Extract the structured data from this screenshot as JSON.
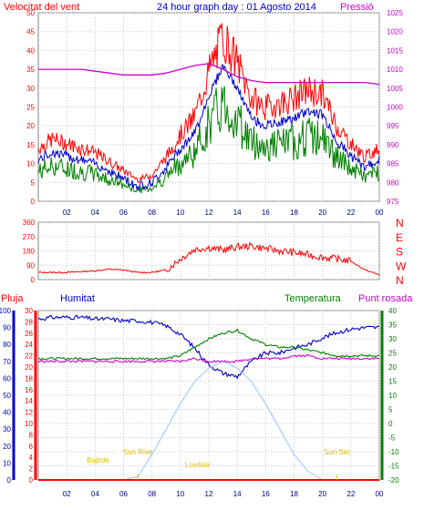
{
  "header": {
    "wind_label": "Velocitat del vent",
    "title": "24 hour graph day : 01 Agosto 2014",
    "pressure_label": "Pressió"
  },
  "colors": {
    "wind": "#ff0000",
    "wind_avg": "#0000cc",
    "wind_min": "#008000",
    "pressure": "#cc00cc",
    "humidity": "#0000cc",
    "temperature": "#008000",
    "dewpoint": "#cc00cc",
    "solar": "#a0c8ff",
    "rain": "#ff0000",
    "sun_labels": "#e0c000"
  },
  "chart_data": [
    {
      "type": "line",
      "title": "24 hour graph day : 01 Agosto 2014",
      "ylabel": "Velocitat del vent",
      "y2label": "Pressió",
      "ylim": [
        0,
        50
      ],
      "y2lim": [
        975,
        1025
      ],
      "x_ticks": [
        "02",
        "04",
        "06",
        "08",
        "10",
        "12",
        "14",
        "16",
        "18",
        "20",
        "22",
        "00"
      ],
      "y_ticks": [
        0,
        5,
        10,
        15,
        20,
        25,
        30,
        35,
        40,
        45,
        50
      ],
      "y2_ticks": [
        975,
        980,
        985,
        990,
        995,
        1000,
        1005,
        1010,
        1015,
        1020,
        1025
      ],
      "grid": true,
      "x_hours": [
        0,
        1,
        2,
        3,
        4,
        5,
        6,
        7,
        8,
        9,
        10,
        11,
        12,
        13,
        14,
        15,
        16,
        17,
        18,
        19,
        20,
        21,
        22,
        23,
        24
      ],
      "series": [
        {
          "name": "Velocitat del vent",
          "axis": "left",
          "values": [
            11,
            13,
            12,
            11,
            10,
            8,
            6,
            4,
            5,
            9,
            14,
            18,
            28,
            36,
            30,
            22,
            20,
            21,
            22,
            24,
            23,
            16,
            12,
            9,
            11
          ]
        },
        {
          "name": "Pressió",
          "axis": "right",
          "values": [
            1010,
            1010,
            1010,
            1010,
            1009.5,
            1009,
            1008.5,
            1008.5,
            1008.5,
            1009,
            1010,
            1011,
            1011.5,
            1010,
            1008,
            1007,
            1006.5,
            1006.5,
            1006.5,
            1006.5,
            1006.5,
            1006.5,
            1006.5,
            1006.5,
            1006
          ]
        }
      ]
    },
    {
      "type": "scatter",
      "ylim": [
        0,
        360
      ],
      "y_ticks": [
        0,
        90,
        180,
        270,
        360
      ],
      "y2_ticks": [
        "N",
        "W",
        "S",
        "E",
        "N"
      ],
      "x_ticks": [
        "02",
        "04",
        "06",
        "08",
        "10",
        "12",
        "14",
        "16",
        "18",
        "20",
        "22",
        "00"
      ],
      "series": [
        {
          "name": "Direcció",
          "x_hours": [
            0,
            1,
            2,
            3,
            4,
            5,
            6,
            7,
            8,
            9,
            10,
            11,
            12,
            13,
            14,
            15,
            16,
            17,
            18,
            19,
            20,
            21,
            22,
            23,
            24
          ],
          "values": [
            45,
            45,
            45,
            50,
            55,
            65,
            60,
            45,
            45,
            60,
            130,
            190,
            200,
            185,
            205,
            210,
            195,
            180,
            170,
            155,
            140,
            130,
            115,
            60,
            30
          ]
        }
      ]
    },
    {
      "type": "line",
      "y_ticks_left": [
        0,
        10,
        20,
        30,
        40,
        50,
        60,
        70,
        80,
        90,
        100
      ],
      "y_ticks_left2": [
        0,
        2,
        4,
        6,
        8,
        10,
        12,
        14,
        16,
        18,
        20,
        22,
        24,
        26,
        28,
        30
      ],
      "y_ticks_right": [
        -20,
        -15,
        -10,
        -5,
        0,
        5,
        10,
        15,
        20,
        25,
        30,
        35,
        40
      ],
      "x_ticks": [
        "02",
        "04",
        "06",
        "08",
        "10",
        "12",
        "14",
        "16",
        "18",
        "20",
        "22",
        "00"
      ],
      "legend": {
        "rain": "Pluja",
        "humidity": "Humitat",
        "temperature": "Temperatura",
        "dewpoint": "Punt rosada"
      },
      "annotations": {
        "sunrise": "Sun Rise",
        "sunset": "Sun Set",
        "hightide": "Bajtide",
        "lowtide": "Lowtide"
      },
      "x_hours": [
        0,
        1,
        2,
        3,
        4,
        5,
        6,
        7,
        8,
        9,
        10,
        11,
        12,
        13,
        14,
        15,
        16,
        17,
        18,
        19,
        20,
        21,
        22,
        23,
        24
      ],
      "series": [
        {
          "name": "Humitat",
          "axis": "left",
          "values": [
            95,
            96,
            96,
            96,
            95,
            95,
            94,
            94,
            93,
            91,
            86,
            78,
            68,
            63,
            61,
            70,
            75,
            75,
            78,
            80,
            84,
            87,
            89,
            90,
            90
          ]
        },
        {
          "name": "Temperatura",
          "axis": "right",
          "values": [
            23,
            23,
            23,
            23,
            23,
            23,
            23,
            23,
            23,
            23,
            24,
            27,
            30,
            32,
            33,
            30,
            28,
            27,
            27,
            26,
            25,
            24,
            24,
            24,
            24
          ]
        },
        {
          "name": "Punt rosada",
          "axis": "right",
          "values": [
            22,
            22,
            22,
            22,
            22,
            22,
            22,
            22,
            22,
            22,
            22,
            23,
            22,
            22,
            22,
            23,
            23,
            23,
            24,
            24,
            23,
            23,
            23,
            23,
            23
          ]
        },
        {
          "name": "Solar",
          "axis": "left",
          "values": [
            0,
            0,
            0,
            0,
            0,
            0,
            0,
            2,
            15,
            30,
            45,
            58,
            66,
            70,
            66,
            58,
            45,
            30,
            15,
            5,
            0,
            0,
            0,
            0,
            0
          ]
        },
        {
          "name": "Pluja",
          "axis": "left2",
          "values": [
            0,
            0,
            0,
            0,
            0,
            0,
            0,
            0,
            0,
            0,
            0,
            0,
            0,
            0,
            0,
            0,
            0,
            0,
            0,
            0,
            0,
            0,
            0,
            0,
            0
          ]
        }
      ],
      "sun_rise_hour": 7,
      "sun_set_hour": 21
    }
  ]
}
